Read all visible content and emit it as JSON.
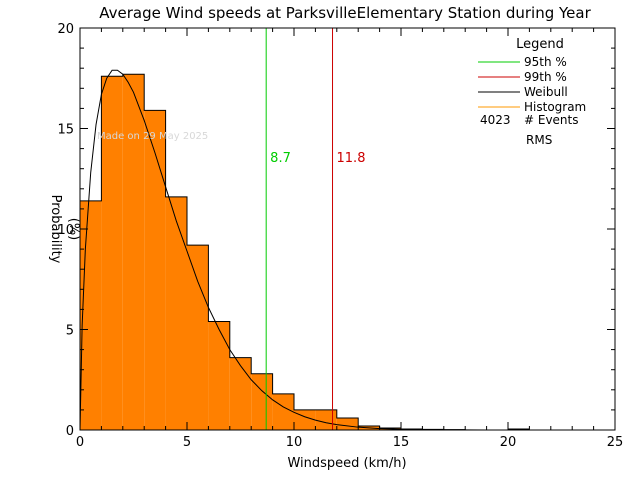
{
  "chart_data": {
    "type": "bar",
    "title": "Average Wind speeds at ParksvilleElementary Station during Year",
    "xlabel": "Windspeed (km/h)",
    "ylabel_lines": [
      "Probability",
      "(%)"
    ],
    "xlim": [
      0,
      25
    ],
    "ylim": [
      0,
      20
    ],
    "xticks": [
      "0",
      "5",
      "10",
      "15",
      "20",
      "25"
    ],
    "yticks": [
      "0",
      "5",
      "10",
      "15",
      "20"
    ],
    "bin_width": 1,
    "bins_start": [
      0,
      1,
      2,
      3,
      4,
      5,
      6,
      7,
      8,
      9,
      10,
      11,
      12,
      13,
      14,
      15,
      16,
      17,
      18,
      19,
      20
    ],
    "histogram": [
      11.4,
      17.6,
      17.7,
      15.9,
      11.6,
      9.2,
      5.4,
      3.6,
      2.8,
      1.8,
      1.0,
      1.0,
      0.6,
      0.2,
      0.1,
      0.05,
      0.03,
      0.02,
      0.0,
      0.0,
      0.05
    ],
    "weibull": {
      "x": [
        0,
        0.1,
        0.25,
        0.5,
        0.75,
        1,
        1.25,
        1.5,
        1.75,
        2,
        2.25,
        2.5,
        3,
        3.5,
        4,
        4.5,
        5,
        5.5,
        6,
        6.5,
        7,
        7.5,
        8,
        8.5,
        9,
        9.5,
        10,
        10.5,
        11,
        11.5,
        12,
        13,
        14,
        15,
        16,
        17,
        18,
        19,
        20,
        21
      ],
      "y": [
        0,
        5.2,
        9.0,
        12.8,
        15.2,
        16.7,
        17.5,
        17.9,
        17.9,
        17.7,
        17.3,
        16.8,
        15.4,
        13.8,
        12.1,
        10.4,
        8.9,
        7.4,
        6.1,
        5.0,
        4.0,
        3.2,
        2.5,
        1.95,
        1.5,
        1.15,
        0.88,
        0.66,
        0.49,
        0.36,
        0.27,
        0.14,
        0.07,
        0.035,
        0.017,
        0.008,
        0.004,
        0.002,
        0.001,
        0.0
      ]
    },
    "percentiles": [
      {
        "name": "95th %",
        "value": 8.7,
        "label": "8.7",
        "color": "#00cc00"
      },
      {
        "name": "99th %",
        "value": 11.8,
        "label": "11.8",
        "color": "#cc0000"
      }
    ],
    "legend": {
      "title": "Legend",
      "placement": "top-right",
      "entries": [
        {
          "name": "95th %",
          "color": "#00cc00"
        },
        {
          "name": "99th %",
          "color": "#cc0000"
        },
        {
          "name": "Weibull",
          "color": "#000000"
        },
        {
          "name": "Histogram",
          "color": "#ff9900"
        }
      ],
      "events_count": "4023",
      "events_label": "# Events",
      "rms_label": "RMS"
    },
    "annotation": "Made on 29 May 2025",
    "colors": {
      "histogram_fill": "#ff8000",
      "histogram_edge": "#000000",
      "weibull": "#000000"
    }
  }
}
